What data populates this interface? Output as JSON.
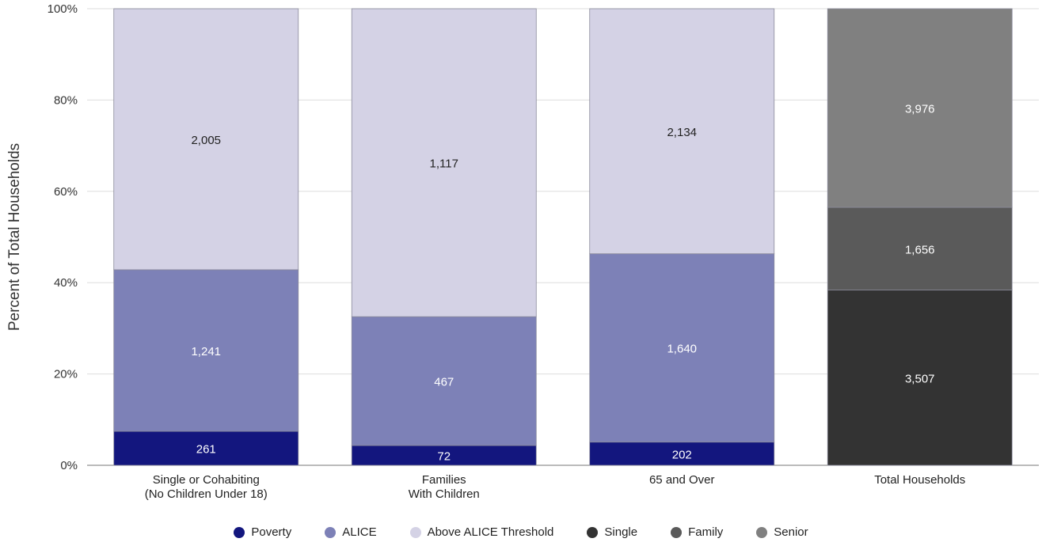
{
  "chart_data": {
    "type": "bar",
    "stacked": true,
    "normalized": true,
    "ylabel": "Percent of Total Households",
    "xlabel": "",
    "ylim": [
      0,
      100
    ],
    "yticks": [
      "0%",
      "20%",
      "40%",
      "60%",
      "80%",
      "100%"
    ],
    "grid": true,
    "legend_position": "bottom",
    "categories": [
      {
        "label": [
          "Single or Cohabiting",
          "(No Children Under 18)"
        ]
      },
      {
        "label": [
          "Families",
          "With Children"
        ]
      },
      {
        "label": [
          "65 and Over"
        ]
      },
      {
        "label": [
          "Total Households"
        ]
      }
    ],
    "series": [
      {
        "name": "Poverty",
        "color": "#13167e",
        "text_color": "#ffffff",
        "values": [
          261,
          72,
          202,
          null
        ],
        "labels": [
          "261",
          "72",
          "202",
          null
        ]
      },
      {
        "name": "ALICE",
        "color": "#7d81b7",
        "text_color": "#ffffff",
        "values": [
          1241,
          467,
          1640,
          null
        ],
        "labels": [
          "1,241",
          "467",
          "1,640",
          null
        ]
      },
      {
        "name": "Above ALICE Threshold",
        "color": "#d4d2e5",
        "text_color": "#222222",
        "values": [
          2005,
          1117,
          2134,
          null
        ],
        "labels": [
          "2,005",
          "1,117",
          "2,134",
          null
        ]
      },
      {
        "name": "Single",
        "color": "#333333",
        "text_color": "#ffffff",
        "values": [
          null,
          null,
          null,
          3507
        ],
        "labels": [
          null,
          null,
          null,
          "3,507"
        ]
      },
      {
        "name": "Family",
        "color": "#5a5a5a",
        "text_color": "#ffffff",
        "values": [
          null,
          null,
          null,
          1656
        ],
        "labels": [
          null,
          null,
          null,
          "1,656"
        ]
      },
      {
        "name": "Senior",
        "color": "#808080",
        "text_color": "#ffffff",
        "values": [
          null,
          null,
          null,
          3976
        ],
        "labels": [
          null,
          null,
          null,
          "3,976"
        ]
      }
    ]
  }
}
